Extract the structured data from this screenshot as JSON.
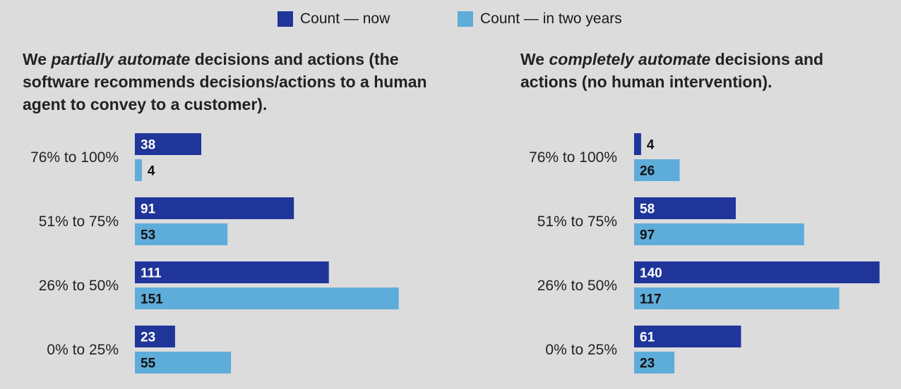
{
  "legend": {
    "now": {
      "label": "Count — now",
      "color": "#1f3599"
    },
    "two_years": {
      "label": "Count — in two years",
      "color": "#5eacd9"
    }
  },
  "charts": [
    {
      "title_pre": "We ",
      "title_em": "partially automate",
      "title_post": " decisions and actions (the software recommends decisions/actions to a human agent to convey to a customer)."
    },
    {
      "title_pre": "We ",
      "title_em": "completely automate",
      "title_post": " decisions and actions (no human intervention)."
    }
  ],
  "chart_data": [
    {
      "type": "bar",
      "orientation": "horizontal",
      "categories": [
        "76% to 100%",
        "51% to 75%",
        "26% to 50%",
        "0% to 25%"
      ],
      "series": [
        {
          "name": "Count — now",
          "values": [
            38,
            91,
            111,
            23
          ]
        },
        {
          "name": "Count — in two years",
          "values": [
            4,
            53,
            151,
            55
          ]
        }
      ]
    },
    {
      "type": "bar",
      "orientation": "horizontal",
      "categories": [
        "76% to 100%",
        "51% to 75%",
        "26% to 50%",
        "0% to 25%"
      ],
      "series": [
        {
          "name": "Count — now",
          "values": [
            4,
            58,
            140,
            61
          ]
        },
        {
          "name": "Count — in two years",
          "values": [
            26,
            97,
            117,
            23
          ]
        }
      ]
    }
  ]
}
